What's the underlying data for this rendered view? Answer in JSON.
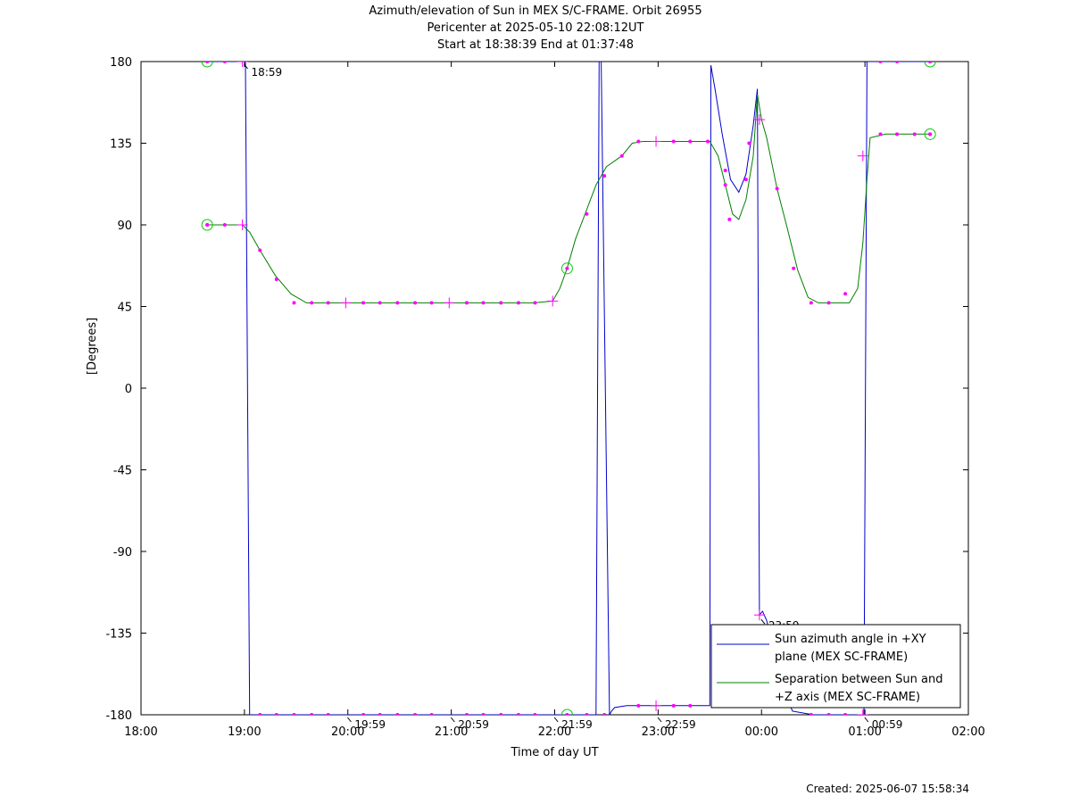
{
  "chart_data": {
    "type": "line",
    "title": "Azimuth/elevation of Sun in MEX S/C-FRAME.  Orbit 26955",
    "subtitle1": "Pericenter at 2025-05-10 22:08:12UT",
    "subtitle2": "Start at 18:38:39 End at 01:37:48",
    "xlabel": "Time of day UT",
    "ylabel": "[Degrees]",
    "created": "Created: 2025-06-07 15:58:34",
    "xlim": [
      18,
      26
    ],
    "ylim": [
      -180,
      180
    ],
    "x_ticks": [
      {
        "v": 18,
        "label": "18:00"
      },
      {
        "v": 19,
        "label": "19:00"
      },
      {
        "v": 20,
        "label": "20:00"
      },
      {
        "v": 21,
        "label": "21:00"
      },
      {
        "v": 22,
        "label": "22:00"
      },
      {
        "v": 23,
        "label": "23:00"
      },
      {
        "v": 24,
        "label": "00:00"
      },
      {
        "v": 25,
        "label": "01:00"
      },
      {
        "v": 26,
        "label": "02:00"
      }
    ],
    "y_ticks": [
      {
        "v": 180,
        "label": "180"
      },
      {
        "v": 135,
        "label": "135"
      },
      {
        "v": 90,
        "label": "90"
      },
      {
        "v": 45,
        "label": "45"
      },
      {
        "v": 0,
        "label": "0"
      },
      {
        "v": -45,
        "label": "-45"
      },
      {
        "v": -90,
        "label": "-90"
      },
      {
        "v": -135,
        "label": "-135"
      },
      {
        "v": -180,
        "label": "-180"
      }
    ],
    "time_annotations": [
      {
        "x": 18.98,
        "y": 180,
        "label": "18:59"
      },
      {
        "x": 19.98,
        "y": -180,
        "label": "19:59"
      },
      {
        "x": 20.98,
        "y": -180,
        "label": "20:59"
      },
      {
        "x": 21.98,
        "y": -180,
        "label": "21:59"
      },
      {
        "x": 22.98,
        "y": -180,
        "label": "22:59"
      },
      {
        "x": 23.98,
        "y": -126,
        "label": "23:59"
      },
      {
        "x": 24.98,
        "y": -180,
        "label": "00:59"
      }
    ],
    "legend_position": "bottom-right",
    "series": [
      {
        "name": "Sun azimuth angle in +XY plane (MEX SC-FRAME)",
        "legend_line1": "Sun azimuth angle in +XY",
        "legend_line2": "plane (MEX SC-FRAME)",
        "color": "#0000cc",
        "x": [
          18.64,
          18.98,
          19.01,
          19.05,
          19.3,
          19.6,
          20.0,
          20.5,
          21.0,
          21.5,
          21.9,
          22.1,
          22.3,
          22.4,
          22.43,
          22.45,
          22.53,
          22.55,
          22.58,
          22.7,
          22.9,
          23.2,
          23.5,
          23.51,
          23.55,
          23.62,
          23.7,
          23.78,
          23.85,
          23.92,
          23.96,
          23.98,
          24.01,
          24.05,
          24.1,
          24.2,
          24.3,
          24.5,
          24.7,
          24.9,
          24.99,
          25.02,
          25.05,
          25.2,
          25.4,
          25.63
        ],
        "values": [
          180,
          180,
          180,
          -180,
          -180,
          -180,
          -180,
          -180,
          -180,
          -180,
          -180,
          -180,
          -180,
          -180,
          180,
          180,
          -180,
          -178,
          -176,
          -175,
          -175,
          -175,
          -175,
          178,
          165,
          140,
          115,
          108,
          118,
          145,
          165,
          -125,
          -123,
          -128,
          -140,
          -165,
          -178,
          -180,
          -180,
          -180,
          -180,
          180,
          180,
          180,
          180,
          180
        ]
      },
      {
        "name": "Separation between Sun and +Z axis (MEX SC-FRAME)",
        "legend_line1": "Separation between Sun and",
        "legend_line2": "+Z axis (MEX SC-FRAME)",
        "color": "#008000",
        "x": [
          18.64,
          18.8,
          18.98,
          19.05,
          19.15,
          19.3,
          19.45,
          19.6,
          20.0,
          20.5,
          21.0,
          21.5,
          21.8,
          21.98,
          22.05,
          22.12,
          22.2,
          22.3,
          22.4,
          22.5,
          22.65,
          22.75,
          22.85,
          23.0,
          23.2,
          23.5,
          23.58,
          23.65,
          23.72,
          23.78,
          23.85,
          23.92,
          23.96,
          24.0,
          24.05,
          24.15,
          24.25,
          24.35,
          24.45,
          24.55,
          24.75,
          24.85,
          24.93,
          24.98,
          25.02,
          25.05,
          25.2,
          25.4,
          25.63
        ],
        "values": [
          90,
          90,
          90,
          86,
          76,
          62,
          52,
          47,
          47,
          47,
          47,
          47,
          47,
          48,
          55,
          66,
          82,
          97,
          112,
          122,
          128,
          135,
          136,
          136,
          136,
          136,
          128,
          112,
          96,
          93,
          104,
          128,
          162,
          148,
          138,
          110,
          88,
          65,
          50,
          47,
          47,
          47,
          55,
          80,
          115,
          138,
          140,
          140,
          140
        ]
      }
    ],
    "markers": {
      "circles": [
        {
          "x": 18.64,
          "y": 180
        },
        {
          "x": 18.64,
          "y": 90
        },
        {
          "x": 22.12,
          "y": 66
        },
        {
          "x": 22.12,
          "y": -180
        },
        {
          "x": 25.63,
          "y": 180
        },
        {
          "x": 25.63,
          "y": 140
        }
      ],
      "crosses": [
        {
          "x": 18.98,
          "y": 180
        },
        {
          "x": 18.98,
          "y": 90
        },
        {
          "x": 19.98,
          "y": 47
        },
        {
          "x": 20.98,
          "y": 47
        },
        {
          "x": 21.98,
          "y": 48
        },
        {
          "x": 22.98,
          "y": 136
        },
        {
          "x": 22.98,
          "y": -175
        },
        {
          "x": 23.98,
          "y": 148
        },
        {
          "x": 23.98,
          "y": -125
        },
        {
          "x": 24.98,
          "y": 128
        },
        {
          "x": 24.98,
          "y": -180
        }
      ],
      "dots": [
        {
          "x": 18.64,
          "y": 90
        },
        {
          "x": 18.81,
          "y": 90
        },
        {
          "x": 18.81,
          "y": 180
        },
        {
          "x": 19.15,
          "y": 76
        },
        {
          "x": 19.31,
          "y": 60
        },
        {
          "x": 19.48,
          "y": 47
        },
        {
          "x": 19.65,
          "y": 47
        },
        {
          "x": 19.81,
          "y": 47
        },
        {
          "x": 20.15,
          "y": 47
        },
        {
          "x": 20.31,
          "y": 47
        },
        {
          "x": 20.48,
          "y": 47
        },
        {
          "x": 20.65,
          "y": 47
        },
        {
          "x": 20.81,
          "y": 47
        },
        {
          "x": 21.15,
          "y": 47
        },
        {
          "x": 21.31,
          "y": 47
        },
        {
          "x": 21.48,
          "y": 47
        },
        {
          "x": 21.65,
          "y": 47
        },
        {
          "x": 21.81,
          "y": 47
        },
        {
          "x": 22.31,
          "y": 96
        },
        {
          "x": 22.48,
          "y": 117
        },
        {
          "x": 22.65,
          "y": 128
        },
        {
          "x": 22.81,
          "y": 136
        },
        {
          "x": 23.15,
          "y": 136
        },
        {
          "x": 23.31,
          "y": 136
        },
        {
          "x": 23.48,
          "y": 136
        },
        {
          "x": 23.65,
          "y": 120
        },
        {
          "x": 23.65,
          "y": 112
        },
        {
          "x": 23.69,
          "y": 93
        },
        {
          "x": 23.85,
          "y": 115
        },
        {
          "x": 23.88,
          "y": 135
        },
        {
          "x": 24.15,
          "y": 110
        },
        {
          "x": 24.31,
          "y": 66
        },
        {
          "x": 24.48,
          "y": 47
        },
        {
          "x": 24.65,
          "y": 47
        },
        {
          "x": 24.81,
          "y": 52
        },
        {
          "x": 25.15,
          "y": 140
        },
        {
          "x": 25.31,
          "y": 140
        },
        {
          "x": 25.48,
          "y": 140
        },
        {
          "x": 25.15,
          "y": 180
        },
        {
          "x": 25.31,
          "y": 180
        },
        {
          "x": 25.63,
          "y": 140
        },
        {
          "x": 25.63,
          "y": 180
        },
        {
          "x": 19.15,
          "y": -180
        },
        {
          "x": 19.31,
          "y": -180
        },
        {
          "x": 19.48,
          "y": -180
        },
        {
          "x": 19.65,
          "y": -180
        },
        {
          "x": 19.81,
          "y": -180
        },
        {
          "x": 20.15,
          "y": -180
        },
        {
          "x": 20.31,
          "y": -180
        },
        {
          "x": 20.48,
          "y": -180
        },
        {
          "x": 20.65,
          "y": -180
        },
        {
          "x": 20.81,
          "y": -180
        },
        {
          "x": 21.15,
          "y": -180
        },
        {
          "x": 21.31,
          "y": -180
        },
        {
          "x": 21.48,
          "y": -180
        },
        {
          "x": 21.65,
          "y": -180
        },
        {
          "x": 21.81,
          "y": -180
        },
        {
          "x": 22.31,
          "y": -180
        },
        {
          "x": 22.48,
          "y": -180
        },
        {
          "x": 22.81,
          "y": -175
        },
        {
          "x": 23.15,
          "y": -175
        },
        {
          "x": 23.31,
          "y": -175
        },
        {
          "x": 24.48,
          "y": -180
        },
        {
          "x": 24.65,
          "y": -180
        },
        {
          "x": 24.81,
          "y": -180
        }
      ]
    }
  }
}
